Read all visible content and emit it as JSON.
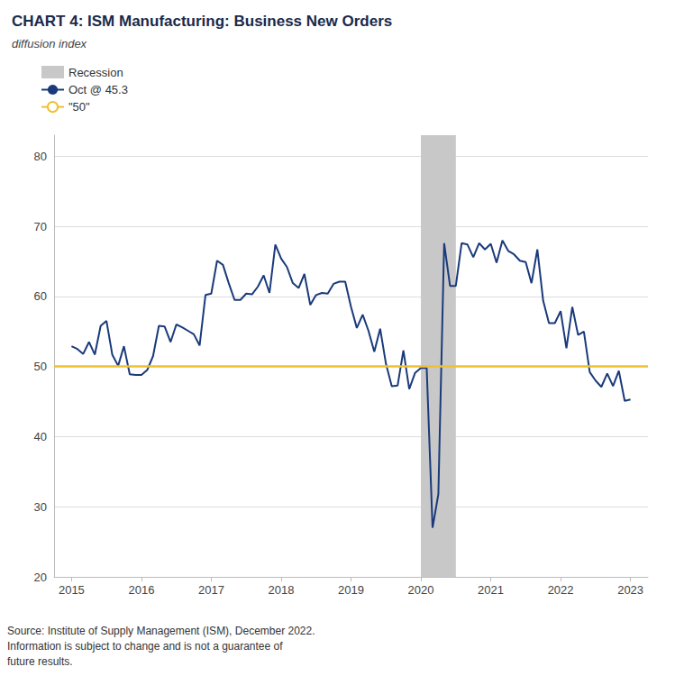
{
  "chart_data": {
    "type": "line",
    "title": "CHART 4: ISM Manufacturing: Business New Orders",
    "subtitle": "diffusion index",
    "source": "Source: Institute of Supply Management (ISM), December 2022.\nInformation is subject to change and is not a guarantee of\nfuture results.",
    "x": [
      2015.0,
      2015.083,
      2015.167,
      2015.25,
      2015.333,
      2015.417,
      2015.5,
      2015.583,
      2015.667,
      2015.75,
      2015.833,
      2015.917,
      2016.0,
      2016.083,
      2016.167,
      2016.25,
      2016.333,
      2016.417,
      2016.5,
      2016.583,
      2016.667,
      2016.75,
      2016.833,
      2016.917,
      2017.0,
      2017.083,
      2017.167,
      2017.25,
      2017.333,
      2017.417,
      2017.5,
      2017.583,
      2017.667,
      2017.75,
      2017.833,
      2017.917,
      2018.0,
      2018.083,
      2018.167,
      2018.25,
      2018.333,
      2018.417,
      2018.5,
      2018.583,
      2018.667,
      2018.75,
      2018.833,
      2018.917,
      2019.0,
      2019.083,
      2019.167,
      2019.25,
      2019.333,
      2019.417,
      2019.5,
      2019.583,
      2019.667,
      2019.75,
      2019.833,
      2019.917,
      2020.0,
      2020.083,
      2020.167,
      2020.25,
      2020.333,
      2020.417,
      2020.5,
      2020.583,
      2020.667,
      2020.75,
      2020.833,
      2020.917,
      2021.0,
      2021.083,
      2021.167,
      2021.25,
      2021.333,
      2021.417,
      2021.5,
      2021.583,
      2021.667,
      2021.75,
      2021.833,
      2021.917,
      2022.0,
      2022.083,
      2022.167,
      2022.25,
      2022.333,
      2022.417,
      2022.5,
      2022.583,
      2022.667,
      2022.75,
      2022.833,
      2022.917,
      2023.0
    ],
    "series": [
      {
        "name": "Recession",
        "type": "span",
        "color": "#c8c8c8",
        "start": 2020.0,
        "end": 2020.5
      },
      {
        "name": "Oct @ 45.3",
        "type": "line",
        "color": "#1a3a7a",
        "values": [
          52.9,
          52.5,
          51.8,
          53.5,
          51.7,
          55.8,
          56.5,
          51.7,
          50.1,
          52.9,
          48.9,
          48.8,
          48.8,
          49.5,
          51.5,
          55.8,
          55.7,
          53.5,
          56.0,
          55.6,
          55.1,
          54.6,
          53.0,
          60.2,
          60.4,
          65.1,
          64.5,
          61.9,
          59.5,
          59.5,
          60.4,
          60.3,
          61.4,
          63.0,
          60.5,
          67.4,
          65.4,
          64.2,
          61.9,
          61.2,
          63.2,
          58.8,
          60.2,
          60.5,
          60.4,
          61.8,
          62.1,
          62.1,
          58.5,
          55.5,
          57.4,
          55.1,
          52.1,
          55.4,
          50.4,
          47.2,
          47.3,
          52.3,
          46.8,
          49.1,
          49.8,
          49.8,
          27.0,
          31.8,
          67.6,
          61.5,
          61.5,
          67.6,
          67.4,
          65.6,
          67.6,
          66.7,
          67.5,
          64.8,
          68.0,
          66.5,
          66.0,
          65.1,
          64.9,
          61.9,
          66.7,
          59.4,
          56.2,
          56.2,
          57.9,
          52.6,
          58.5,
          54.5,
          55.0,
          49.2,
          48.0,
          47.1,
          49.0,
          47.2,
          49.4,
          45.1,
          45.3
        ]
      },
      {
        "name": "\"50\"",
        "type": "hline",
        "color": "#f0c030",
        "value": 50
      }
    ],
    "xlim": [
      2014.75,
      2023.25
    ],
    "xticks": [
      2015,
      2016,
      2017,
      2018,
      2019,
      2020,
      2021,
      2022,
      2023
    ],
    "ylim": [
      20,
      83
    ],
    "yticks": [
      20,
      30,
      40,
      50,
      60,
      70,
      80
    ],
    "grid": true,
    "legend": "upper left"
  }
}
